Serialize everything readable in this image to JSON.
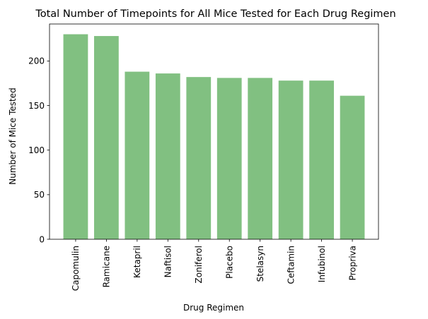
{
  "chart_data": {
    "type": "bar",
    "title": "Total Number of Timepoints for All Mice Tested for Each Drug Regimen",
    "xlabel": "Drug Regimen",
    "ylabel": "Number of Mice Tested",
    "categories": [
      "Capomulin",
      "Ramicane",
      "Ketapril",
      "Naftisol",
      "Zoniferol",
      "Placebo",
      "Stelasyn",
      "Ceftamin",
      "Infubinol",
      "Propriva"
    ],
    "values": [
      230,
      228,
      188,
      186,
      182,
      181,
      181,
      178,
      178,
      161
    ],
    "ylim": [
      0,
      241.5
    ],
    "yticks": [
      0,
      50,
      100,
      150,
      200
    ],
    "grid": false,
    "legend": "none",
    "bar_color": "#81c081",
    "bar_alpha": 1
  }
}
